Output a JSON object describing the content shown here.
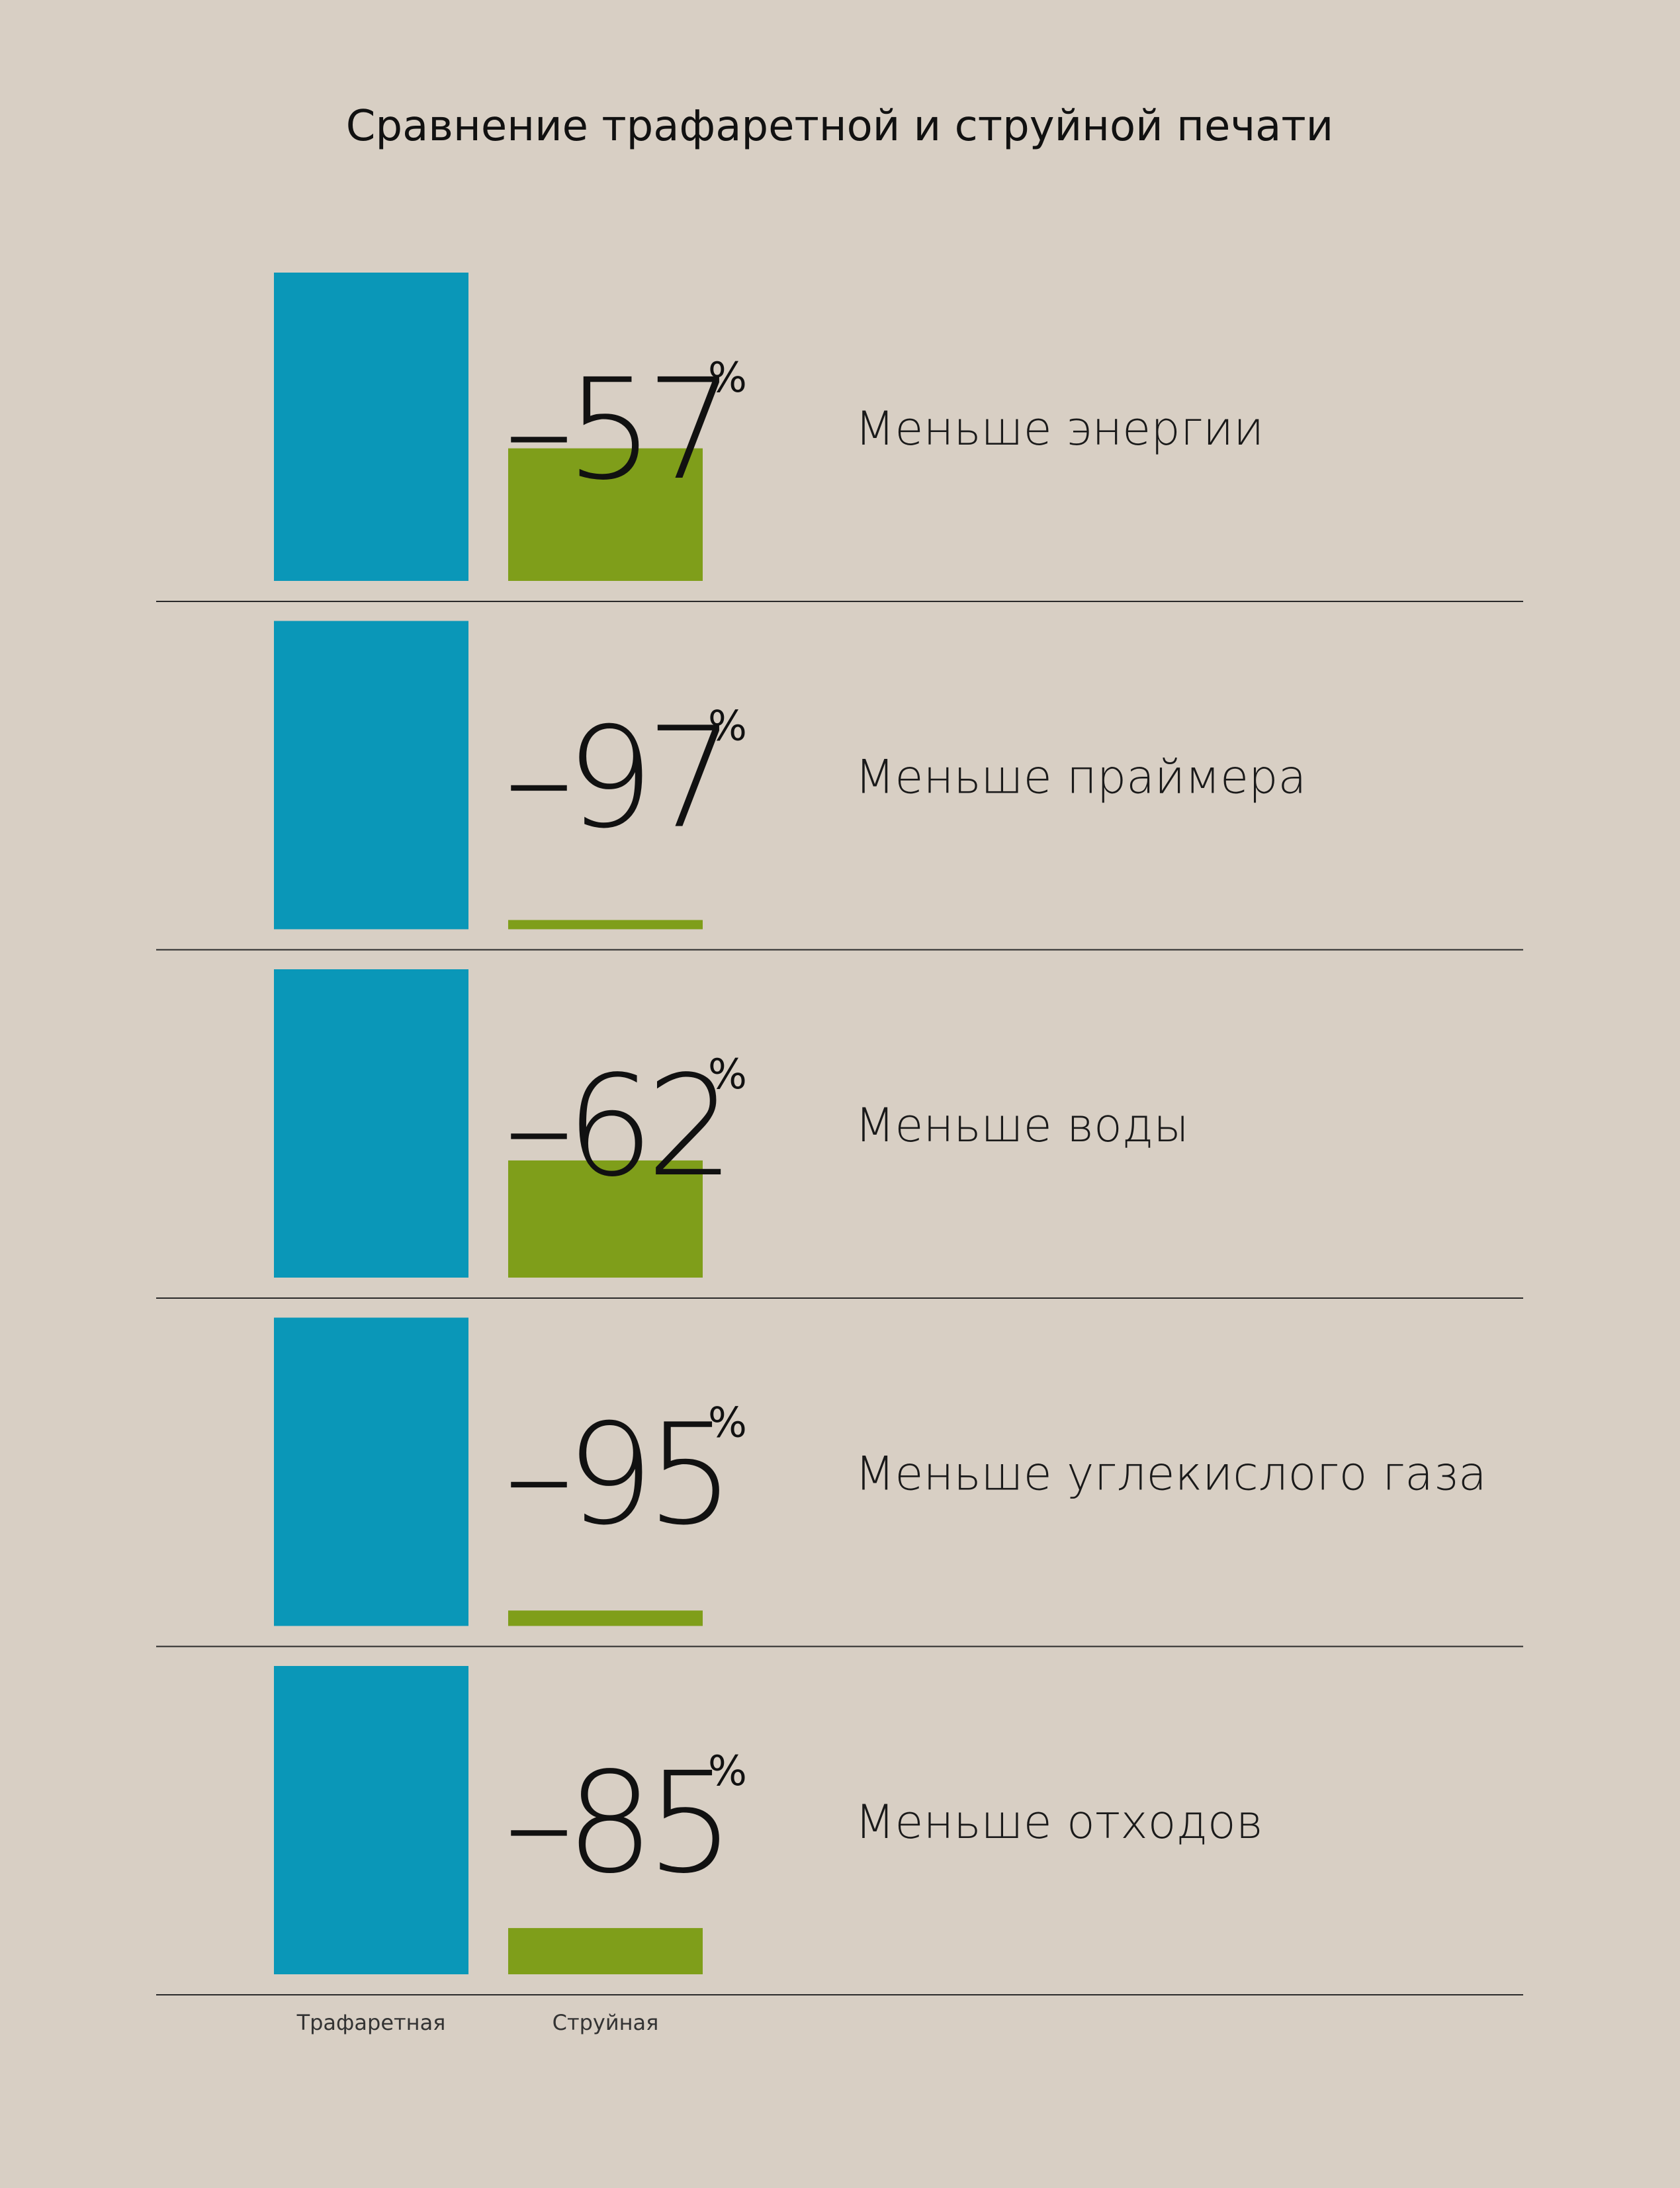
{
  "chart_data": {
    "type": "bar",
    "title": "Сравнение трафаретной и струйной печати",
    "series": [
      {
        "name": "Трафаретная",
        "color": "#0a97b8"
      },
      {
        "name": "Струйная",
        "color": "#7f9e1a"
      }
    ],
    "unit": "%",
    "rows": [
      {
        "label": "Меньше энергии",
        "value": "–57",
        "screen": 100,
        "inkjet": 43
      },
      {
        "label": "Меньше праймера",
        "value": "–97",
        "screen": 100,
        "inkjet": 3
      },
      {
        "label": "Меньше воды",
        "value": "–62",
        "screen": 100,
        "inkjet": 38
      },
      {
        "label": "Меньше углекислого газа",
        "value": "–95",
        "screen": 100,
        "inkjet": 5
      },
      {
        "label": "Меньше отходов",
        "value": "–85",
        "screen": 100,
        "inkjet": 15
      }
    ],
    "ylim": [
      0,
      100
    ]
  }
}
